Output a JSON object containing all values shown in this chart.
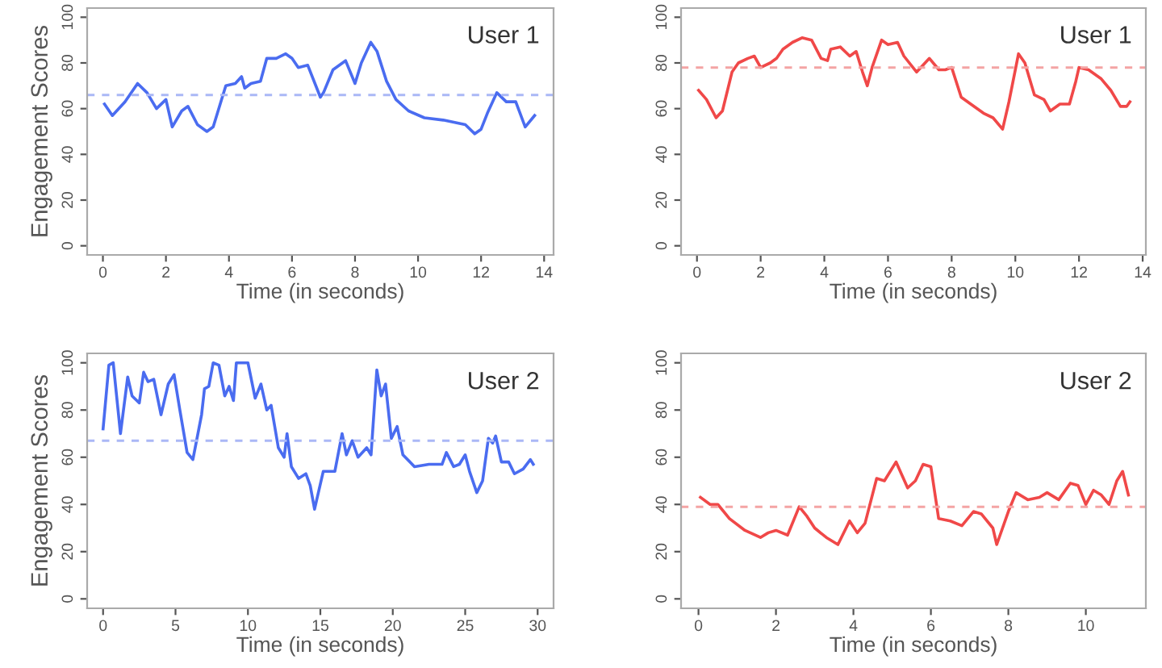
{
  "chart_data": [
    {
      "type": "line",
      "ylabel": "Engagement Scores",
      "xlabel": "Time (in seconds)",
      "annotations": [
        "User 1"
      ],
      "xlim": [
        -0.5,
        14.3
      ],
      "ylim": [
        -4,
        104
      ],
      "xticks": [
        0,
        2,
        4,
        6,
        8,
        10,
        12,
        14
      ],
      "yticks": [
        0,
        20,
        40,
        60,
        80,
        100
      ],
      "grid": false,
      "ref_lines": [
        {
          "axis": "y",
          "value": 66,
          "color": "#aab8f6",
          "line_style": "dashed"
        }
      ],
      "series": [
        {
          "color": "#4a6cf0",
          "x": [
            0.05,
            0.3,
            0.7,
            1.1,
            1.4,
            1.7,
            2.0,
            2.2,
            2.5,
            2.7,
            3.0,
            3.3,
            3.5,
            3.9,
            4.2,
            4.4,
            4.5,
            4.7,
            5.0,
            5.2,
            5.5,
            5.8,
            6.0,
            6.2,
            6.5,
            6.9,
            7.0,
            7.3,
            7.7,
            8.0,
            8.2,
            8.5,
            8.7,
            9.0,
            9.3,
            9.7,
            10.2,
            10.8,
            11.5,
            11.8,
            12.0,
            12.2,
            12.5,
            12.8,
            13.1,
            13.4,
            13.7
          ],
          "values": [
            62,
            57,
            63,
            71,
            67,
            60,
            64,
            52,
            59,
            61,
            53,
            50,
            52,
            70,
            71,
            74,
            69,
            71,
            72,
            82,
            82,
            84,
            82,
            78,
            79,
            65,
            67,
            77,
            81,
            71,
            80,
            89,
            85,
            72,
            64,
            59,
            56,
            55,
            53,
            49,
            51,
            58,
            67,
            63,
            63,
            52,
            57
          ]
        }
      ]
    },
    {
      "type": "line",
      "xlabel": "Time (in seconds)",
      "annotations": [
        "User 1"
      ],
      "xlim": [
        -0.5,
        14.1
      ],
      "ylim": [
        -4,
        104
      ],
      "xticks": [
        0,
        2,
        4,
        6,
        8,
        10,
        12,
        14
      ],
      "yticks": [
        0,
        20,
        40,
        60,
        80,
        100
      ],
      "grid": false,
      "ref_lines": [
        {
          "axis": "y",
          "value": 78,
          "color": "#f4a4a4",
          "line_style": "dashed"
        }
      ],
      "series": [
        {
          "color": "#f04848",
          "x": [
            0.05,
            0.3,
            0.6,
            0.8,
            1.1,
            1.3,
            1.6,
            1.8,
            2.0,
            2.3,
            2.5,
            2.7,
            3.0,
            3.3,
            3.6,
            3.9,
            4.1,
            4.2,
            4.5,
            4.8,
            5.0,
            5.2,
            5.35,
            5.5,
            5.8,
            6.0,
            6.3,
            6.5,
            6.9,
            7.3,
            7.6,
            7.8,
            8.0,
            8.3,
            8.6,
            9.0,
            9.3,
            9.6,
            9.8,
            10.1,
            10.3,
            10.6,
            10.9,
            11.1,
            11.4,
            11.7,
            11.9,
            12.0,
            12.3,
            12.7,
            13.0,
            13.3,
            13.5,
            13.6
          ],
          "values": [
            68,
            64,
            56,
            59,
            76,
            80,
            82,
            83,
            78,
            80,
            82,
            86,
            89,
            91,
            90,
            82,
            81,
            86,
            87,
            83,
            85,
            76,
            70,
            78,
            90,
            88,
            89,
            83,
            76,
            82,
            77,
            77,
            78,
            65,
            62,
            58,
            56,
            51,
            63,
            84,
            80,
            66,
            64,
            59,
            62,
            62,
            72,
            78,
            77,
            73,
            68,
            61,
            61,
            63
          ]
        }
      ]
    },
    {
      "type": "line",
      "ylabel": "Engagement Scores",
      "xlabel": "Time (in seconds)",
      "annotations": [
        "User 2"
      ],
      "xlim": [
        -1.1,
        31.1
      ],
      "ylim": [
        -4,
        104
      ],
      "xticks": [
        0,
        5,
        10,
        15,
        20,
        25,
        30
      ],
      "yticks": [
        0,
        20,
        40,
        60,
        80,
        100
      ],
      "grid": false,
      "ref_lines": [
        {
          "axis": "y",
          "value": 67,
          "color": "#aab8f6",
          "line_style": "dashed"
        }
      ],
      "series": [
        {
          "color": "#4a6cf0",
          "x": [
            0,
            0.4,
            0.7,
            1.2,
            1.7,
            2.0,
            2.5,
            2.8,
            3.1,
            3.5,
            4.0,
            4.5,
            4.9,
            5.3,
            5.8,
            6.2,
            6.8,
            7.0,
            7.3,
            7.6,
            8.0,
            8.4,
            8.7,
            9.0,
            9.2,
            10.0,
            10.5,
            10.9,
            11.3,
            11.6,
            12.1,
            12.5,
            12.7,
            13.0,
            13.5,
            14.0,
            14.3,
            14.6,
            15.2,
            16.0,
            16.5,
            16.8,
            17.2,
            17.6,
            18.2,
            18.5,
            18.9,
            19.2,
            19.5,
            19.9,
            20.3,
            20.7,
            21.5,
            22.5,
            23.4,
            23.7,
            24.2,
            24.6,
            25.0,
            25.3,
            25.8,
            26.2,
            26.6,
            26.9,
            27.1,
            27.5,
            28.0,
            28.4,
            29.0,
            29.5,
            29.7
          ],
          "values": [
            72,
            99,
            100,
            70,
            94,
            86,
            83,
            96,
            92,
            93,
            78,
            91,
            95,
            80,
            62,
            59,
            78,
            89,
            90,
            100,
            99,
            86,
            90,
            84,
            100,
            100,
            85,
            91,
            80,
            82,
            64,
            60,
            70,
            56,
            51,
            53,
            48,
            38,
            54,
            54,
            70,
            61,
            67,
            60,
            64,
            61,
            97,
            86,
            91,
            68,
            73,
            61,
            56,
            57,
            57,
            62,
            56,
            57,
            61,
            54,
            45,
            50,
            68,
            66,
            69,
            58,
            58,
            53,
            55,
            59,
            57
          ]
        }
      ]
    },
    {
      "type": "line",
      "xlabel": "Time (in seconds)",
      "annotations": [
        "User 2"
      ],
      "xlim": [
        -0.45,
        11.55
      ],
      "ylim": [
        -4,
        104
      ],
      "xticks": [
        0,
        2,
        4,
        6,
        8,
        10
      ],
      "yticks": [
        0,
        20,
        40,
        60,
        80,
        100
      ],
      "grid": false,
      "ref_lines": [
        {
          "axis": "y",
          "value": 39,
          "color": "#f4a4a4",
          "line_style": "dashed"
        }
      ],
      "series": [
        {
          "color": "#f04848",
          "x": [
            0.05,
            0.3,
            0.5,
            0.8,
            1.2,
            1.6,
            1.8,
            2.0,
            2.3,
            2.6,
            2.8,
            3.0,
            3.3,
            3.6,
            3.9,
            4.1,
            4.3,
            4.6,
            4.8,
            5.1,
            5.4,
            5.6,
            5.8,
            6.0,
            6.2,
            6.5,
            6.8,
            7.1,
            7.3,
            7.6,
            7.7,
            8.0,
            8.2,
            8.5,
            8.8,
            9.0,
            9.3,
            9.6,
            9.8,
            10.0,
            10.2,
            10.4,
            10.6,
            10.8,
            10.95,
            11.1
          ],
          "values": [
            43,
            40,
            40,
            34,
            29,
            26,
            28,
            29,
            27,
            39,
            35,
            30,
            26,
            23,
            33,
            28,
            32,
            51,
            50,
            58,
            47,
            50,
            57,
            56,
            34,
            33,
            31,
            37,
            36,
            30,
            23,
            37,
            45,
            42,
            43,
            45,
            42,
            49,
            48,
            40,
            46,
            44,
            40,
            50,
            54,
            44
          ]
        }
      ]
    }
  ]
}
